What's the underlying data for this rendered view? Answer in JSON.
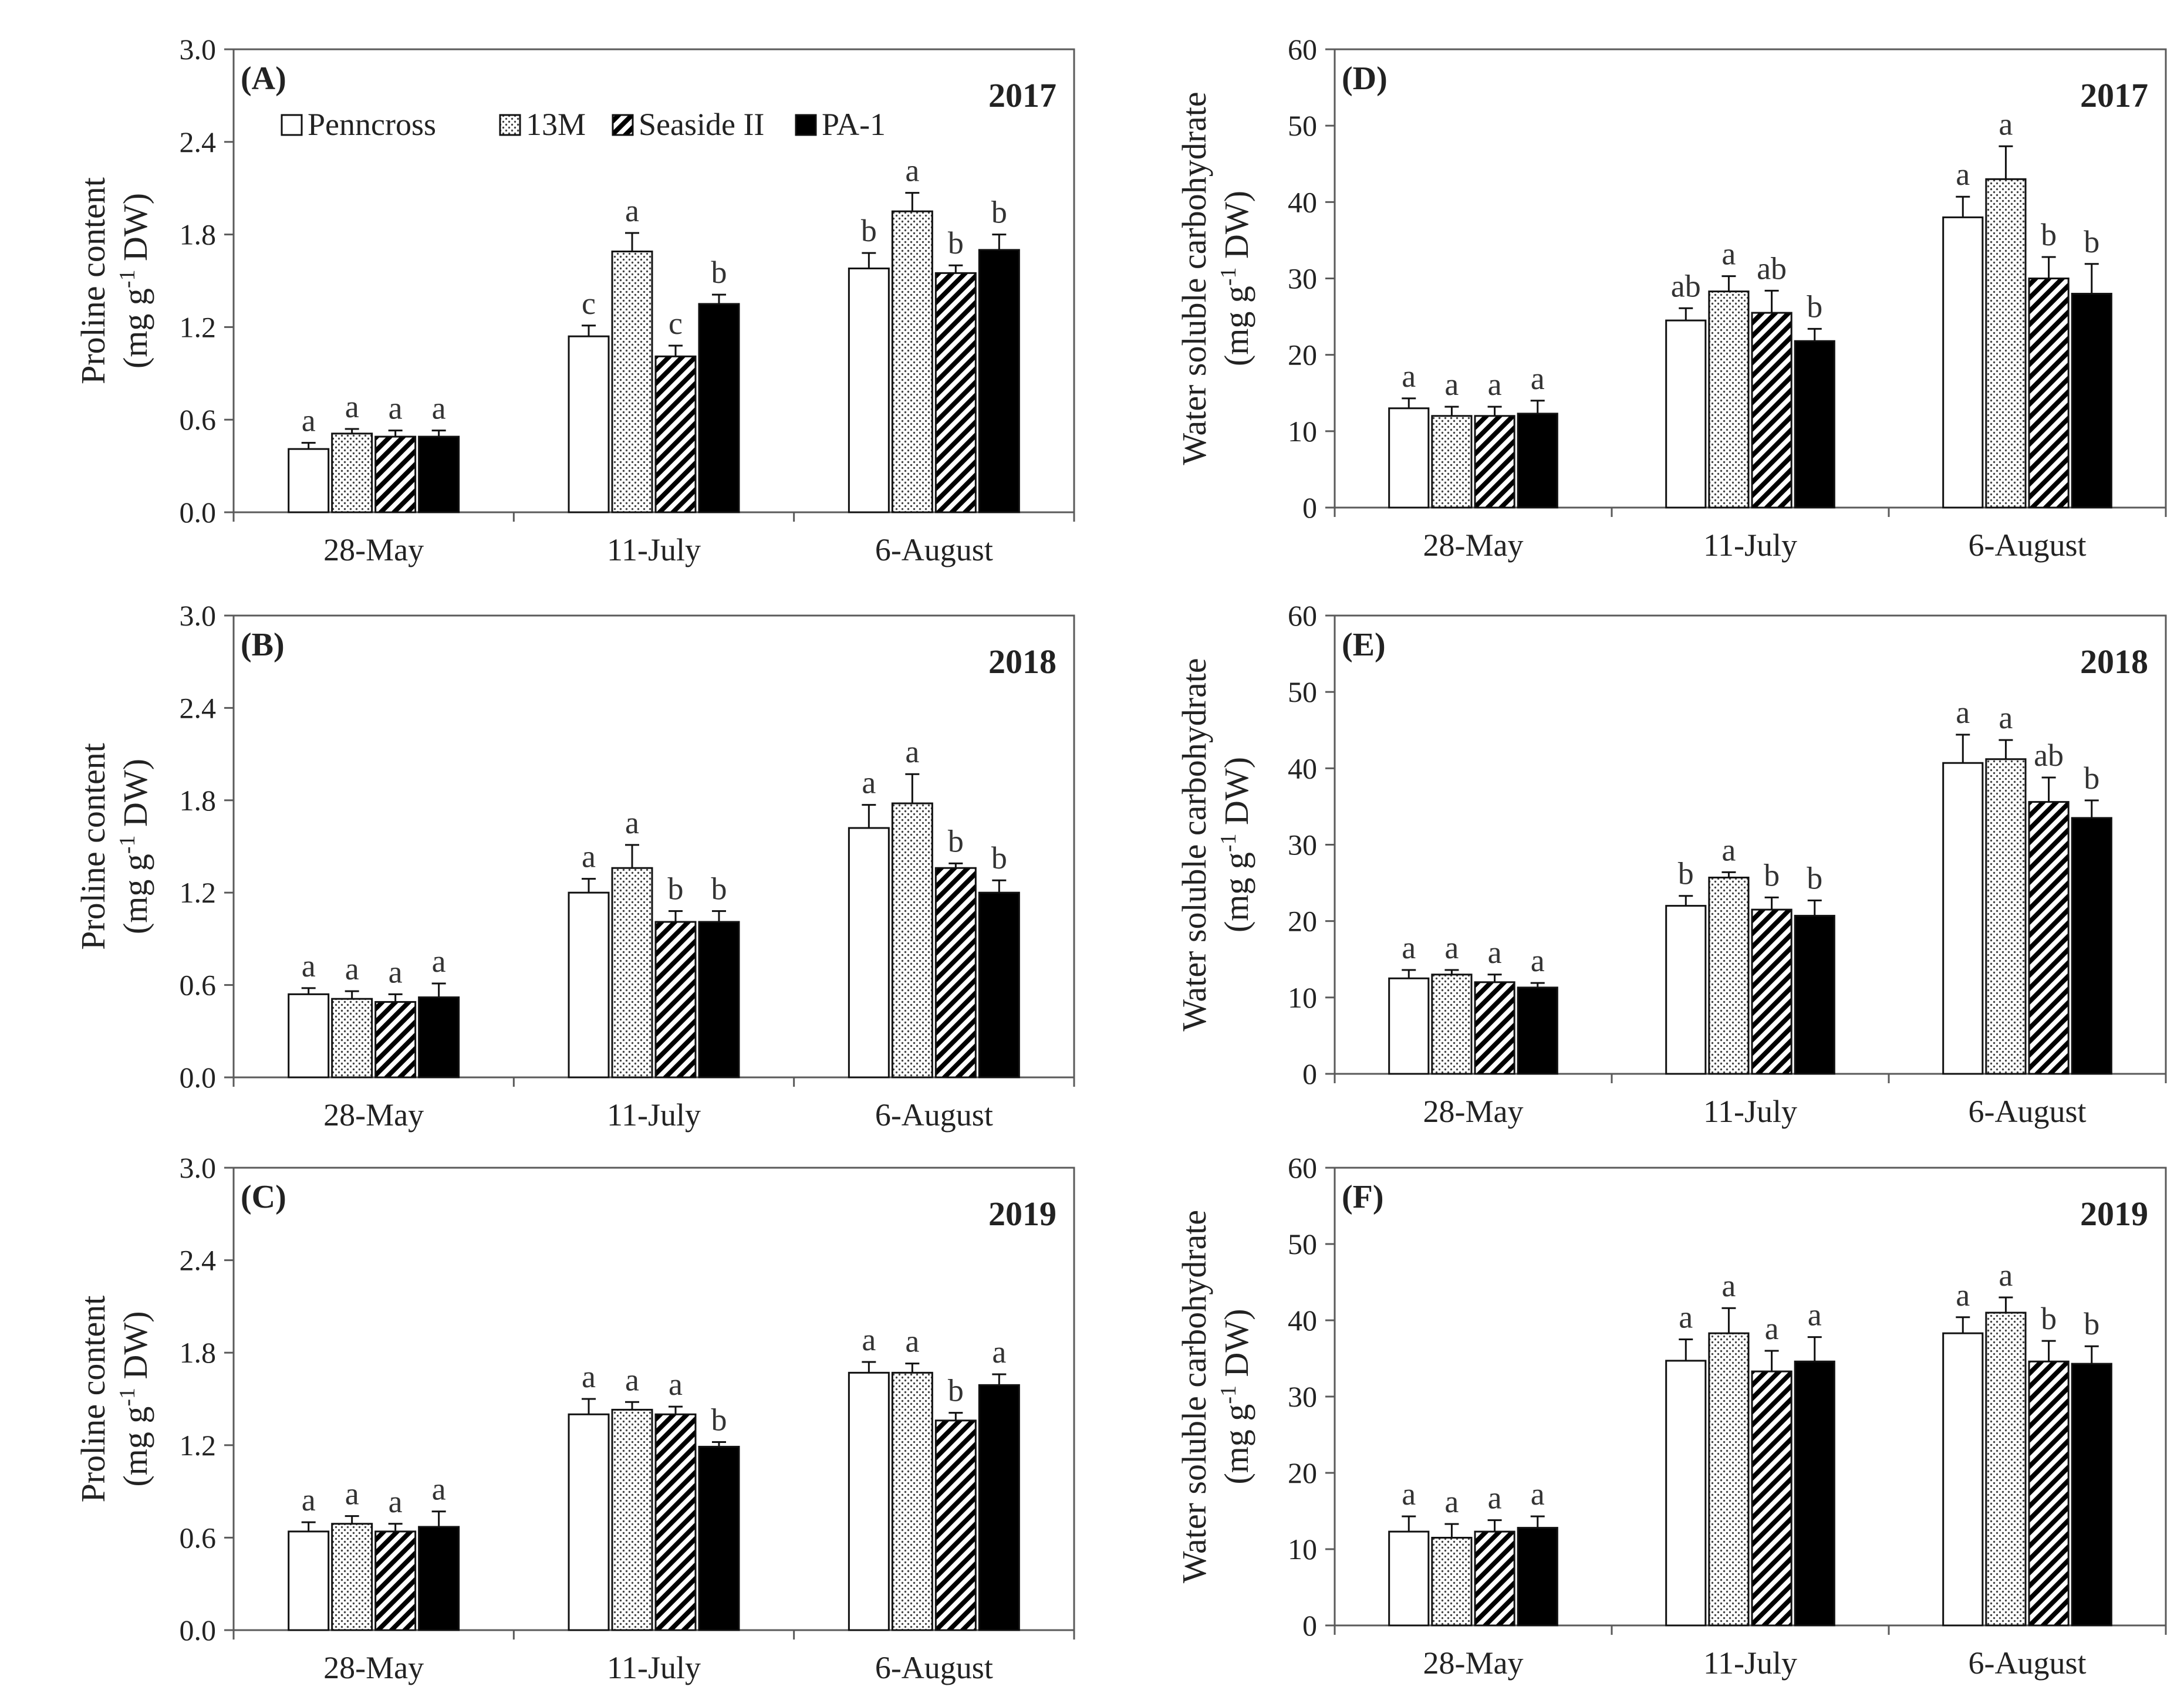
{
  "colors": {
    "axis": "#5a5a5a",
    "bar_outline": "#111111",
    "black_fill": "#000000",
    "white_fill": "#ffffff"
  },
  "legend": [
    {
      "name": "Penncross",
      "pattern": "white"
    },
    {
      "name": "13M",
      "pattern": "dots"
    },
    {
      "name": "Seaside II",
      "pattern": "hatch"
    },
    {
      "name": "PA-1",
      "pattern": "black"
    }
  ],
  "chart_data": [
    {
      "id": "A",
      "panel_label": "(A)",
      "year": "2017",
      "type": "bar",
      "ylabel_line1": "Proline content",
      "ylabel_line2_pre": "(mg g",
      "ylabel_sup": "-1",
      "ylabel_line2_post": " DW)",
      "ylim": [
        0,
        3
      ],
      "ytick_labels": [
        "0.0",
        "0.6",
        "1.2",
        "1.8",
        "2.4",
        "3.0"
      ],
      "categories": [
        "28-May",
        "11-July",
        "6-August"
      ],
      "series": [
        {
          "name": "Penncross",
          "values": [
            0.41,
            1.14,
            1.58
          ],
          "errors": [
            0.04,
            0.07,
            0.1
          ],
          "letters": [
            "a",
            "c",
            "b"
          ]
        },
        {
          "name": "13M",
          "values": [
            0.51,
            1.69,
            1.95
          ],
          "errors": [
            0.03,
            0.12,
            0.12
          ],
          "letters": [
            "a",
            "a",
            "a"
          ]
        },
        {
          "name": "Seaside II",
          "values": [
            0.49,
            1.01,
            1.55
          ],
          "errors": [
            0.04,
            0.07,
            0.05
          ],
          "letters": [
            "a",
            "c",
            "b"
          ]
        },
        {
          "name": "PA-1",
          "values": [
            0.49,
            1.35,
            1.7
          ],
          "errors": [
            0.04,
            0.06,
            0.1
          ],
          "letters": [
            "a",
            "b",
            "b"
          ]
        }
      ]
    },
    {
      "id": "D",
      "panel_label": "(D)",
      "year": "2017",
      "type": "bar",
      "ylabel_line1": "Water soluble carbohydrate",
      "ylabel_line2_pre": "(mg g",
      "ylabel_sup": "-1",
      "ylabel_line2_post": " DW)",
      "ylim": [
        0,
        60
      ],
      "ytick_labels": [
        "0",
        "10",
        "20",
        "30",
        "40",
        "50",
        "60"
      ],
      "categories": [
        "28-May",
        "11-July",
        "6-August"
      ],
      "series": [
        {
          "name": "Penncross",
          "values": [
            13.0,
            24.5,
            38.0
          ],
          "errors": [
            1.3,
            1.6,
            2.7
          ],
          "letters": [
            "a",
            "ab",
            "a"
          ]
        },
        {
          "name": "13M",
          "values": [
            12.0,
            28.3,
            43.0
          ],
          "errors": [
            1.2,
            2.0,
            4.3
          ],
          "letters": [
            "a",
            "a",
            "a"
          ]
        },
        {
          "name": "Seaside II",
          "values": [
            12.0,
            25.5,
            30.0
          ],
          "errors": [
            1.2,
            2.9,
            2.8
          ],
          "letters": [
            "a",
            "ab",
            "b"
          ]
        },
        {
          "name": "PA-1",
          "values": [
            12.3,
            21.8,
            28.0
          ],
          "errors": [
            1.7,
            1.6,
            3.9
          ],
          "letters": [
            "a",
            "b",
            "b"
          ]
        }
      ]
    },
    {
      "id": "B",
      "panel_label": "(B)",
      "year": "2018",
      "type": "bar",
      "ylabel_line1": "Proline content",
      "ylabel_line2_pre": "(mg g",
      "ylabel_sup": "-1",
      "ylabel_line2_post": " DW)",
      "ylim": [
        0,
        3
      ],
      "ytick_labels": [
        "0.0",
        "0.6",
        "1.2",
        "1.8",
        "2.4",
        "3.0"
      ],
      "categories": [
        "28-May",
        "11-July",
        "6-August"
      ],
      "series": [
        {
          "name": "Penncross",
          "values": [
            0.54,
            1.2,
            1.62
          ],
          "errors": [
            0.04,
            0.09,
            0.15
          ],
          "letters": [
            "a",
            "a",
            "a"
          ]
        },
        {
          "name": "13M",
          "values": [
            0.51,
            1.36,
            1.78
          ],
          "errors": [
            0.05,
            0.15,
            0.19
          ],
          "letters": [
            "a",
            "a",
            "a"
          ]
        },
        {
          "name": "Seaside II",
          "values": [
            0.49,
            1.01,
            1.36
          ],
          "errors": [
            0.05,
            0.07,
            0.03
          ],
          "letters": [
            "a",
            "b",
            "b"
          ]
        },
        {
          "name": "PA-1",
          "values": [
            0.52,
            1.01,
            1.2
          ],
          "errors": [
            0.09,
            0.07,
            0.08
          ],
          "letters": [
            "a",
            "b",
            "b"
          ]
        }
      ]
    },
    {
      "id": "E",
      "panel_label": "(E)",
      "year": "2018",
      "type": "bar",
      "ylabel_line1": "Water soluble carbohydrate",
      "ylabel_line2_pre": "(mg g",
      "ylabel_sup": "-1",
      "ylabel_line2_post": " DW)",
      "ylim": [
        0,
        60
      ],
      "ytick_labels": [
        "0",
        "10",
        "20",
        "30",
        "40",
        "50",
        "60"
      ],
      "categories": [
        "28-May",
        "11-July",
        "6-August"
      ],
      "series": [
        {
          "name": "Penncross",
          "values": [
            12.5,
            22.0,
            40.7
          ],
          "errors": [
            1.1,
            1.3,
            3.7
          ],
          "letters": [
            "a",
            "b",
            "a"
          ]
        },
        {
          "name": "13M",
          "values": [
            13.0,
            25.7,
            41.2
          ],
          "errors": [
            0.6,
            0.7,
            2.5
          ],
          "letters": [
            "a",
            "a",
            "a"
          ]
        },
        {
          "name": "Seaside II",
          "values": [
            12.0,
            21.5,
            35.6
          ],
          "errors": [
            1.0,
            1.6,
            3.2
          ],
          "letters": [
            "a",
            "b",
            "ab"
          ]
        },
        {
          "name": "PA-1",
          "values": [
            11.3,
            20.7,
            33.5
          ],
          "errors": [
            0.6,
            2.0,
            2.3
          ],
          "letters": [
            "a",
            "b",
            "b"
          ]
        }
      ]
    },
    {
      "id": "C",
      "panel_label": "(C)",
      "year": "2019",
      "type": "bar",
      "ylabel_line1": "Proline content",
      "ylabel_line2_pre": "(mg g",
      "ylabel_sup": "-1",
      "ylabel_line2_post": " DW)",
      "ylim": [
        0,
        3
      ],
      "ytick_labels": [
        "0.0",
        "0.6",
        "1.2",
        "1.8",
        "2.4",
        "3.0"
      ],
      "categories": [
        "28-May",
        "11-July",
        "6-August"
      ],
      "series": [
        {
          "name": "Penncross",
          "values": [
            0.64,
            1.4,
            1.67
          ],
          "errors": [
            0.06,
            0.1,
            0.07
          ],
          "letters": [
            "a",
            "a",
            "a"
          ]
        },
        {
          "name": "13M",
          "values": [
            0.69,
            1.43,
            1.67
          ],
          "errors": [
            0.05,
            0.05,
            0.06
          ],
          "letters": [
            "a",
            "a",
            "a"
          ]
        },
        {
          "name": "Seaside II",
          "values": [
            0.64,
            1.4,
            1.36
          ],
          "errors": [
            0.05,
            0.05,
            0.05
          ],
          "letters": [
            "a",
            "a",
            "b"
          ]
        },
        {
          "name": "PA-1",
          "values": [
            0.67,
            1.19,
            1.59
          ],
          "errors": [
            0.1,
            0.03,
            0.07
          ],
          "letters": [
            "a",
            "b",
            "a"
          ]
        }
      ]
    },
    {
      "id": "F",
      "panel_label": "(F)",
      "year": "2019",
      "type": "bar",
      "ylabel_line1": "Water soluble carbohydrate",
      "ylabel_line2_pre": "(mg g",
      "ylabel_sup": "-1",
      "ylabel_line2_post": " DW)",
      "ylim": [
        0,
        60
      ],
      "ytick_labels": [
        "0",
        "10",
        "20",
        "30",
        "40",
        "50",
        "60"
      ],
      "categories": [
        "28-May",
        "11-July",
        "6-August"
      ],
      "series": [
        {
          "name": "Penncross",
          "values": [
            12.3,
            34.7,
            38.3
          ],
          "errors": [
            2.0,
            2.8,
            2.1
          ],
          "letters": [
            "a",
            "a",
            "a"
          ]
        },
        {
          "name": "13M",
          "values": [
            11.5,
            38.3,
            41.0
          ],
          "errors": [
            1.8,
            3.3,
            2.0
          ],
          "letters": [
            "a",
            "a",
            "a"
          ]
        },
        {
          "name": "Seaside II",
          "values": [
            12.3,
            33.3,
            34.6
          ],
          "errors": [
            1.5,
            2.7,
            2.7
          ],
          "letters": [
            "a",
            "a",
            "b"
          ]
        },
        {
          "name": "PA-1",
          "values": [
            12.8,
            34.6,
            34.3
          ],
          "errors": [
            1.5,
            3.2,
            2.3
          ],
          "letters": [
            "a",
            "a",
            "b"
          ]
        }
      ]
    }
  ]
}
